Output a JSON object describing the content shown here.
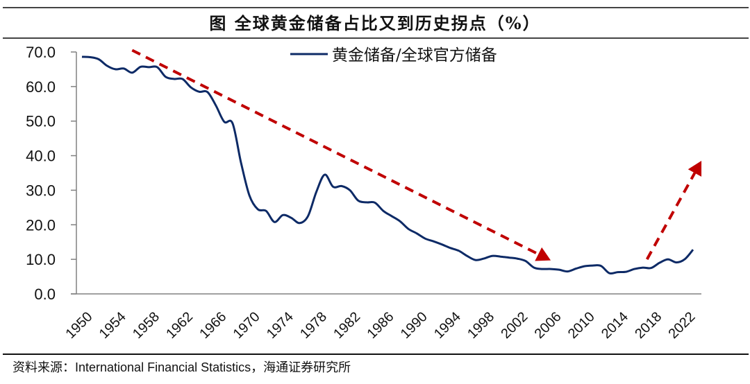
{
  "title": "图    全球黄金储备占比又到历史拐点（%）",
  "source": "资料来源：International Financial Statistics，海通证券研究所",
  "chart_data": {
    "type": "line",
    "title": "图 全球黄金储备占比又到历史拐点（%）",
    "xlabel": "",
    "ylabel": "",
    "ylim": [
      0,
      70
    ],
    "yticks": [
      "0.0",
      "10.0",
      "20.0",
      "30.0",
      "40.0",
      "50.0",
      "60.0",
      "70.0"
    ],
    "xlim": [
      1950,
      2023
    ],
    "xticks": [
      "1950",
      "1954",
      "1958",
      "1962",
      "1966",
      "1970",
      "1974",
      "1978",
      "1982",
      "1986",
      "1990",
      "1994",
      "1998",
      "2002",
      "2006",
      "2010",
      "2014",
      "2018",
      "2022"
    ],
    "grid": false,
    "legend_position": "top-center",
    "series": [
      {
        "name": "黄金储备/全球官方储备",
        "color": "#0d2a66",
        "x": [
          1950,
          1951,
          1952,
          1953,
          1954,
          1955,
          1956,
          1957,
          1958,
          1959,
          1960,
          1961,
          1962,
          1963,
          1964,
          1965,
          1966,
          1967,
          1968,
          1969,
          1970,
          1971,
          1972,
          1973,
          1974,
          1975,
          1976,
          1977,
          1978,
          1979,
          1980,
          1981,
          1982,
          1983,
          1984,
          1985,
          1986,
          1987,
          1988,
          1989,
          1990,
          1991,
          1992,
          1993,
          1994,
          1995,
          1996,
          1997,
          1998,
          1999,
          2000,
          2001,
          2002,
          2003,
          2004,
          2005,
          2006,
          2007,
          2008,
          2009,
          2010,
          2011,
          2012,
          2013,
          2014,
          2015,
          2016,
          2017,
          2018,
          2019,
          2020,
          2021,
          2022,
          2023
        ],
        "values": [
          68.6,
          68.5,
          67.9,
          66.0,
          65.0,
          65.2,
          64.0,
          65.7,
          65.6,
          65.6,
          62.8,
          62.2,
          62.2,
          59.8,
          58.5,
          58.4,
          54.5,
          49.8,
          49.3,
          38.0,
          28.5,
          24.5,
          24.0,
          20.8,
          22.8,
          22.0,
          20.5,
          22.5,
          29.5,
          34.5,
          31.0,
          31.2,
          30.0,
          27.0,
          26.5,
          26.4,
          24.0,
          22.5,
          21.0,
          18.8,
          17.5,
          16.0,
          15.2,
          14.3,
          13.3,
          12.5,
          11.0,
          9.8,
          10.2,
          11.0,
          10.8,
          10.5,
          10.2,
          9.5,
          7.6,
          7.2,
          7.2,
          7.0,
          6.5,
          7.3,
          8.0,
          8.2,
          8.1,
          6.0,
          6.3,
          6.4,
          7.2,
          7.6,
          7.5,
          9.0,
          10.0,
          9.1,
          10.0,
          12.8
        ]
      }
    ],
    "annotations": [
      {
        "type": "dashed-arrow",
        "color": "#c00000",
        "from": [
          1956,
          70.5
        ],
        "to": [
          2006,
          9.7
        ],
        "meaning": "long-term downtrend"
      },
      {
        "type": "dashed-arrow",
        "color": "#c00000",
        "from": [
          2017.5,
          10.0
        ],
        "to": [
          2024,
          38.5
        ],
        "meaning": "recent uptrend / turning point"
      }
    ]
  }
}
